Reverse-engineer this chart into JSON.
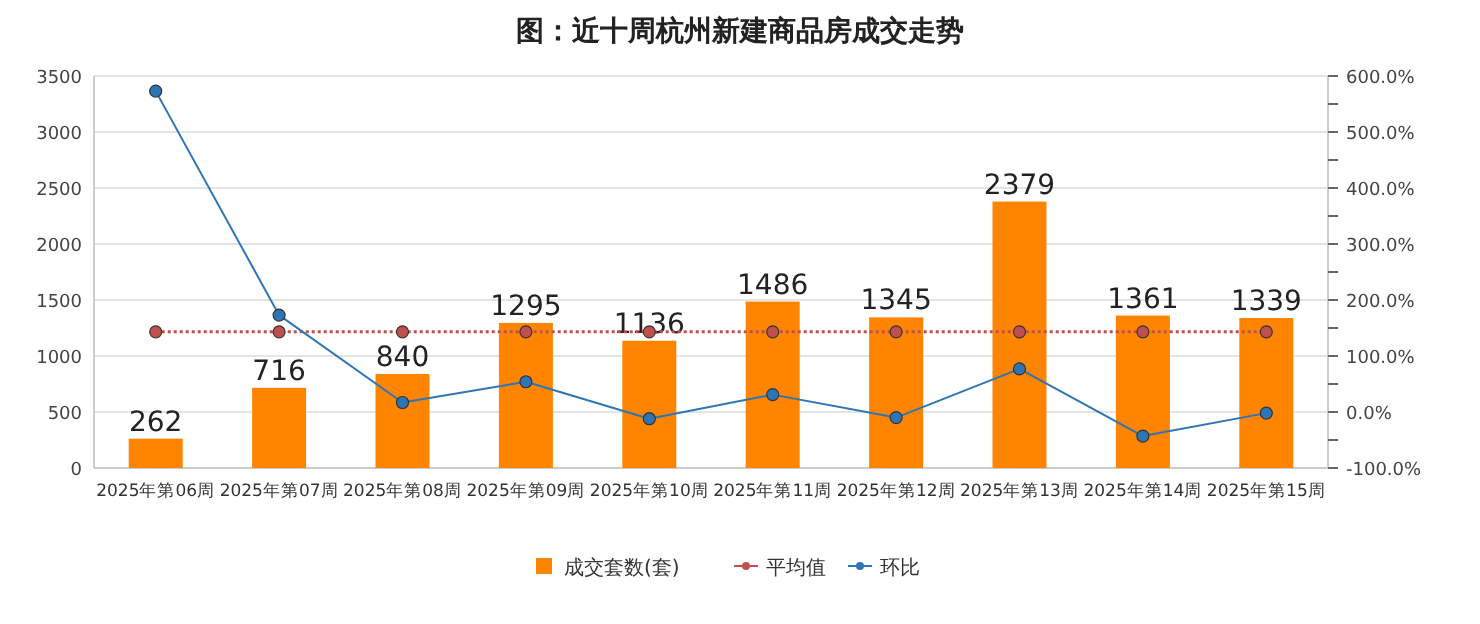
{
  "chart_data": {
    "type": "bar",
    "title": "图：近十周杭州新建商品房成交走势",
    "categories": [
      "2025年第06周",
      "2025年第07周",
      "2025年第08周",
      "2025年第09周",
      "2025年第10周",
      "2025年第11周",
      "2025年第12周",
      "2025年第13周",
      "2025年第14周",
      "2025年第15周"
    ],
    "series": [
      {
        "name": "成交套数(套)",
        "color": "#ff8400",
        "values": [
          262,
          716,
          840,
          1295,
          1136,
          1486,
          1345,
          2379,
          1361,
          1339
        ],
        "value_labels": [
          "262",
          "716",
          "840",
          "1295",
          "1136",
          "1486",
          "1345",
          "2379",
          "1361",
          "1339"
        ]
      },
      {
        "name": "平均值",
        "type": "line",
        "color": "#c0504d",
        "line_style": "dotted",
        "marker": "circle",
        "values": [
          1216,
          1216,
          1216,
          1216,
          1216,
          1216,
          1216,
          1216,
          1216,
          1216
        ]
      },
      {
        "name": "环比",
        "type": "line",
        "axis": "y2",
        "color": "#2e75b6",
        "line_style": "solid",
        "marker": "circle",
        "values": [
          573,
          173,
          17,
          54,
          -12,
          31,
          -10,
          77,
          -43,
          -2
        ]
      }
    ],
    "ylim": [
      0,
      3500
    ],
    "yticks": [
      0,
      500,
      1000,
      1500,
      2000,
      2500,
      3000,
      3500
    ],
    "y2lim": [
      -100,
      600
    ],
    "y2ticks": [
      {
        "value": -100,
        "label": "-100.0%"
      },
      {
        "value": -50,
        "label": null
      },
      {
        "value": 0,
        "label": "0.0%"
      },
      {
        "value": 50,
        "label": null
      },
      {
        "value": 100,
        "label": "100.0%"
      },
      {
        "value": 150,
        "label": null
      },
      {
        "value": 200,
        "label": "200.0%"
      },
      {
        "value": 250,
        "label": null
      },
      {
        "value": 300,
        "label": "300.0%"
      },
      {
        "value": 350,
        "label": null
      },
      {
        "value": 400,
        "label": "400.0%"
      },
      {
        "value": 450,
        "label": null
      },
      {
        "value": 500,
        "label": "500.0%"
      },
      {
        "value": 550,
        "label": null
      },
      {
        "value": 600,
        "label": "600.0%"
      }
    ],
    "grid": "y",
    "legend": "bottom"
  }
}
